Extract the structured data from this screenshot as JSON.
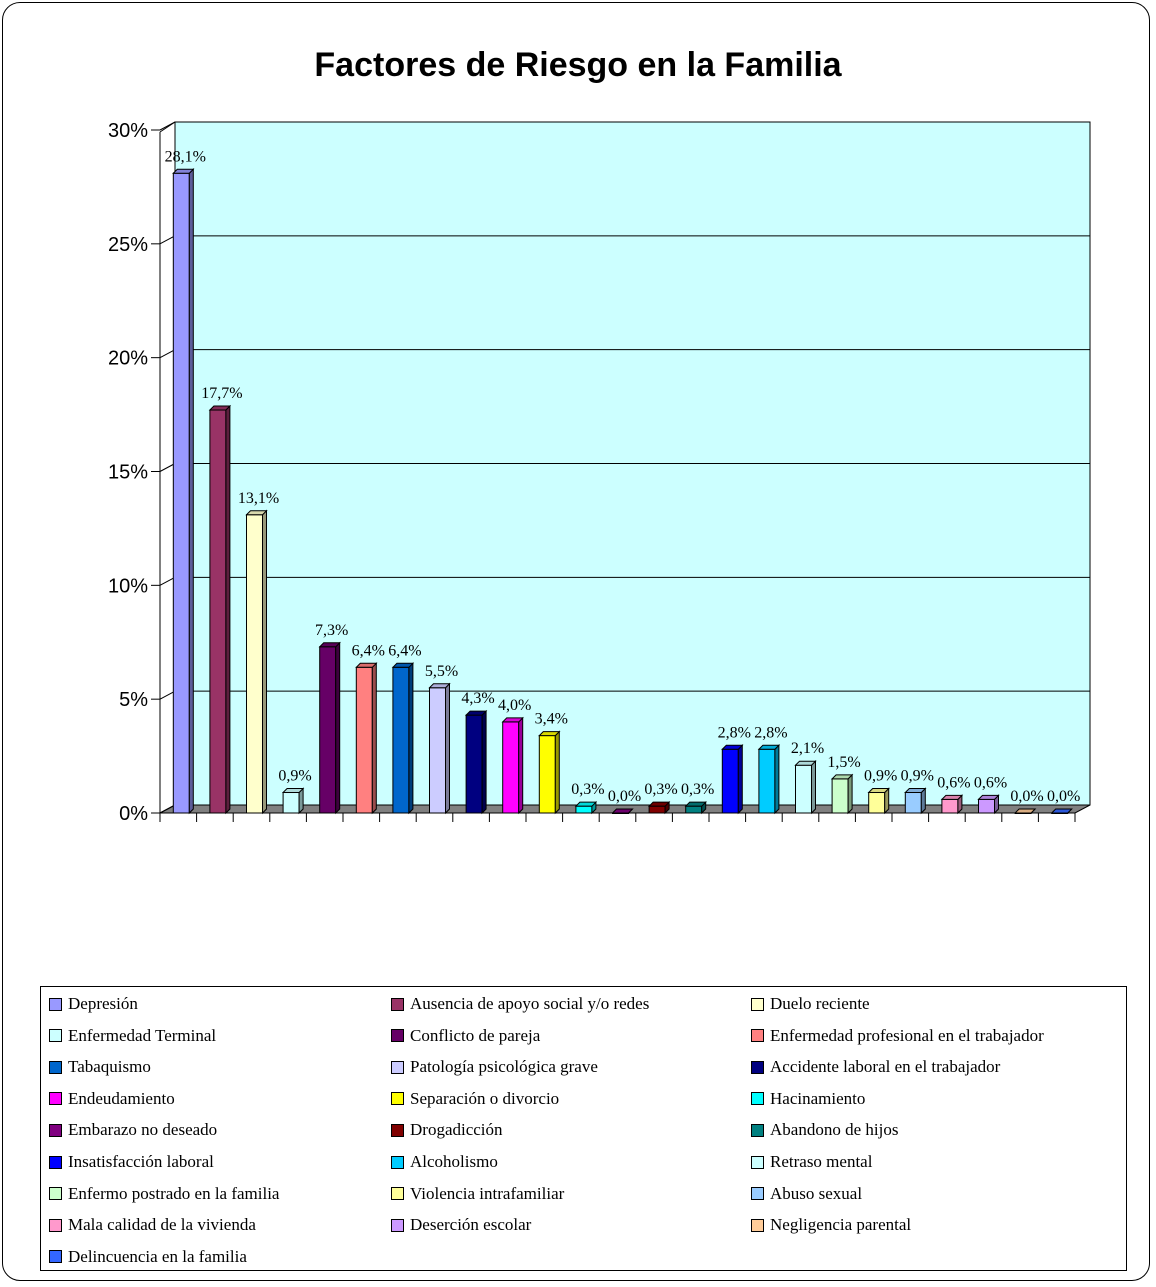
{
  "chart_data": {
    "type": "bar",
    "title": "Factores de Riesgo en la Familia",
    "xlabel": "",
    "ylabel": "",
    "ylim": [
      0,
      30
    ],
    "y_ticks": [
      "0%",
      "5%",
      "10%",
      "15%",
      "20%",
      "25%",
      "30%"
    ],
    "y_tick_values": [
      0,
      5,
      10,
      15,
      20,
      25,
      30
    ],
    "grid": true,
    "legend_position": "bottom",
    "plot_background": "#ccffff",
    "floor_color": "#808080",
    "categories": [
      "Depresión",
      "Ausencia de apoyo social y/o redes",
      "Duelo reciente",
      "Enfermedad Terminal",
      "Conflicto de pareja",
      "Enfermedad profesional en el trabajador",
      "Tabaquismo",
      "Patología psicológica grave",
      "Accidente laboral en el trabajador",
      "Endeudamiento",
      "Separación o divorcio",
      "Hacinamiento",
      "Embarazo no deseado",
      "Drogadicción",
      "Abandono de hijos",
      "Insatisfacción laboral",
      "Alcoholismo",
      "Retraso mental",
      "Enfermo postrado en la familia",
      "Violencia intrafamiliar",
      "Abuso sexual",
      "Mala calidad de la vivienda",
      "Deserción escolar",
      "Negligencia parental",
      "Delincuencia en la familia"
    ],
    "values": [
      28.1,
      17.7,
      13.1,
      0.9,
      7.3,
      6.4,
      6.4,
      5.5,
      4.3,
      4.0,
      3.4,
      0.3,
      0.0,
      0.3,
      0.3,
      2.8,
      2.8,
      2.1,
      1.5,
      0.9,
      0.9,
      0.6,
      0.6,
      0.0,
      0.0
    ],
    "data_labels": [
      "28,1%",
      "17,7%",
      "13,1%",
      "0,9%",
      "7,3%",
      "6,4%",
      "6,4%",
      "5,5%",
      "4,3%",
      "4,0%",
      "3,4%",
      "0,3%",
      "0,0%",
      "0,3%",
      "0,3%",
      "2,8%",
      "2,8%",
      "2,1%",
      "1,5%",
      "0,9%",
      "0,9%",
      "0,6%",
      "0,6%",
      "0,0%",
      "0,0%"
    ],
    "colors": [
      "#9999ff",
      "#993366",
      "#ffffcc",
      "#ccffff",
      "#660066",
      "#ff8080",
      "#0066cc",
      "#ccccff",
      "#000080",
      "#ff00ff",
      "#ffff00",
      "#00ffff",
      "#800080",
      "#800000",
      "#008080",
      "#0000ff",
      "#00ccff",
      "#ccffff",
      "#ccffcc",
      "#ffff99",
      "#99ccff",
      "#ff99cc",
      "#cc99ff",
      "#ffcc99",
      "#3366ff"
    ]
  }
}
